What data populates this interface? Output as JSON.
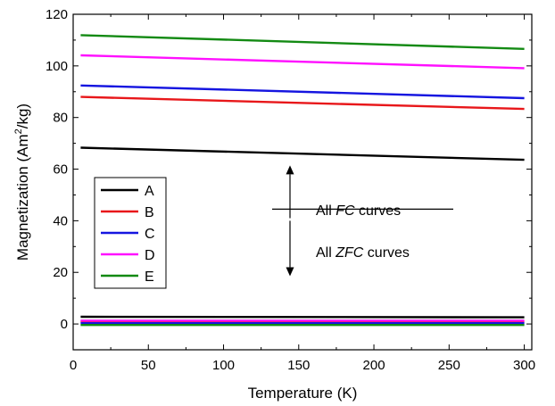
{
  "chart_data": {
    "type": "line",
    "xlabel": "Temperature (K)",
    "ylabel": {
      "pre": "Magnetization (Am",
      "sup": "2",
      "post": "/kg)"
    },
    "xlim": [
      0,
      305
    ],
    "ylim": [
      -10,
      120
    ],
    "xticks": [
      0,
      50,
      100,
      150,
      200,
      250,
      300
    ],
    "yticks": [
      0,
      20,
      40,
      60,
      80,
      100,
      120
    ],
    "grid": false,
    "legend_position": "middle-left",
    "annotations": {
      "fc": {
        "pre": "All ",
        "italic": "FC",
        "post": " curves"
      },
      "zfc": {
        "pre": "All ",
        "italic": "ZFC",
        "post": " curves"
      }
    },
    "series": [
      {
        "name": "A",
        "color": "#000000",
        "fc": {
          "x": [
            5,
            300
          ],
          "y": [
            68.3,
            63.6
          ]
        },
        "zfc": {
          "x": [
            5,
            300
          ],
          "y": [
            2.8,
            2.6
          ]
        }
      },
      {
        "name": "B",
        "color": "#e8171a",
        "fc": {
          "x": [
            5,
            300
          ],
          "y": [
            88.0,
            83.3
          ]
        },
        "zfc": {
          "x": [
            5,
            300
          ],
          "y": [
            1.0,
            1.0
          ]
        }
      },
      {
        "name": "C",
        "color": "#1515e0",
        "fc": {
          "x": [
            5,
            300
          ],
          "y": [
            92.4,
            87.5
          ]
        },
        "zfc": {
          "x": [
            5,
            300
          ],
          "y": [
            0.3,
            0.3
          ]
        }
      },
      {
        "name": "D",
        "color": "#ff10ff",
        "fc": {
          "x": [
            5,
            300
          ],
          "y": [
            104.1,
            99.1
          ]
        },
        "zfc": {
          "x": [
            5,
            300
          ],
          "y": [
            1.3,
            1.3
          ]
        }
      },
      {
        "name": "E",
        "color": "#138a13",
        "fc": {
          "x": [
            5,
            300
          ],
          "y": [
            111.9,
            106.6
          ]
        },
        "zfc": {
          "x": [
            5,
            300
          ],
          "y": [
            -0.4,
            -0.4
          ]
        }
      }
    ]
  }
}
